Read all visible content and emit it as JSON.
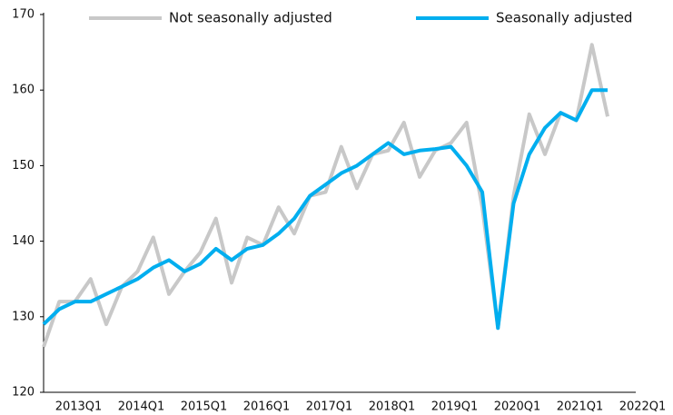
{
  "chart_data": {
    "type": "line",
    "categories": [
      null,
      null,
      "2013Q1",
      null,
      null,
      null,
      "2014Q1",
      null,
      null,
      null,
      "2015Q1",
      null,
      null,
      null,
      "2016Q1",
      null,
      null,
      null,
      "2017Q1",
      null,
      null,
      null,
      "2018Q1",
      null,
      null,
      null,
      "2019Q1",
      null,
      null,
      null,
      "2020Q1",
      null,
      null,
      null,
      "2021Q1",
      null,
      null,
      null,
      "2022Q1"
    ],
    "series": [
      {
        "name": "Not seasonally adjusted",
        "color": "#c8c8c8",
        "values": [
          126,
          132,
          132,
          135,
          129,
          134,
          136,
          140.5,
          133,
          136,
          138.5,
          143,
          134.5,
          140.5,
          139.5,
          144.5,
          141,
          146,
          146.5,
          152.5,
          147,
          151.5,
          152,
          155.7,
          148.5,
          152,
          153,
          155.7,
          144.5,
          128.5,
          146,
          156.8,
          151.5,
          157,
          156,
          166,
          156.5,
          null,
          null
        ]
      },
      {
        "name": "Seasonally adjusted",
        "color": "#00aeef",
        "values": [
          129,
          131,
          132,
          132,
          133,
          134,
          135,
          136.5,
          137.5,
          136,
          137,
          139,
          137.5,
          139,
          139.5,
          141,
          143,
          146,
          147.5,
          149,
          150,
          151.5,
          153,
          151.5,
          152,
          152.2,
          152.5,
          150,
          146.5,
          128.5,
          145,
          151.5,
          155,
          157,
          156,
          160,
          160,
          null,
          null
        ]
      }
    ],
    "ylim": [
      120,
      170
    ],
    "yticks": [
      120,
      130,
      140,
      150,
      160,
      170
    ]
  }
}
